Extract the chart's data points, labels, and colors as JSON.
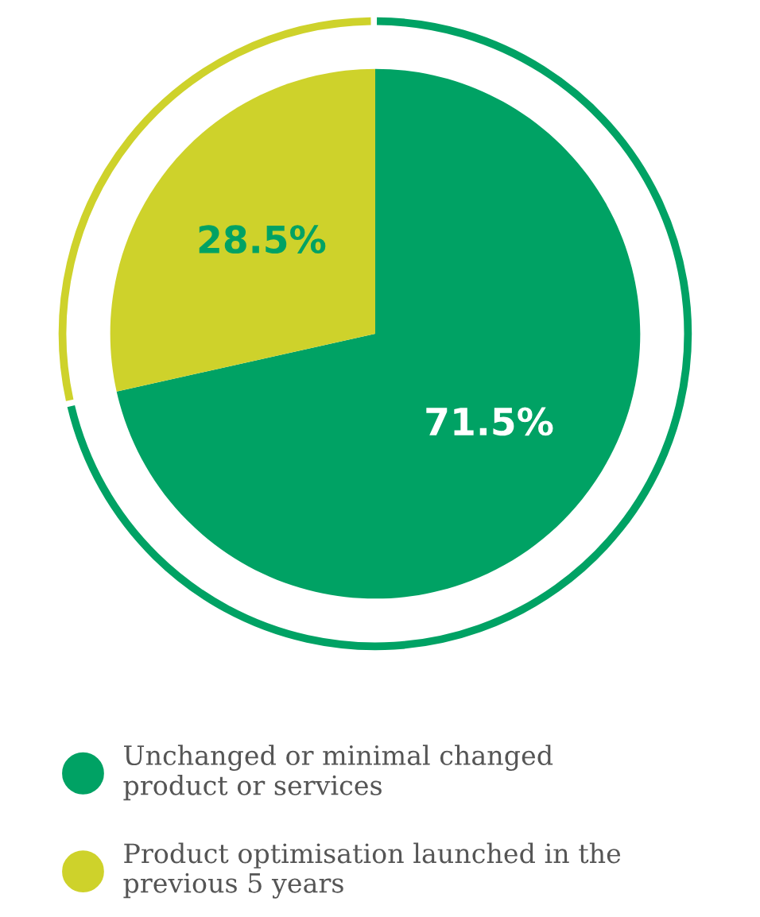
{
  "chart_data": {
    "type": "pie",
    "categories": [
      "Unchanged or minimal changed\nproduct or services",
      "Product optimisation launched in the\nprevious 5 years"
    ],
    "values": [
      71.5,
      28.5
    ],
    "colors": [
      "#00a264",
      "#ced22b"
    ],
    "value_labels": [
      "71.5%",
      "28.5%"
    ],
    "legend": "bottom"
  }
}
